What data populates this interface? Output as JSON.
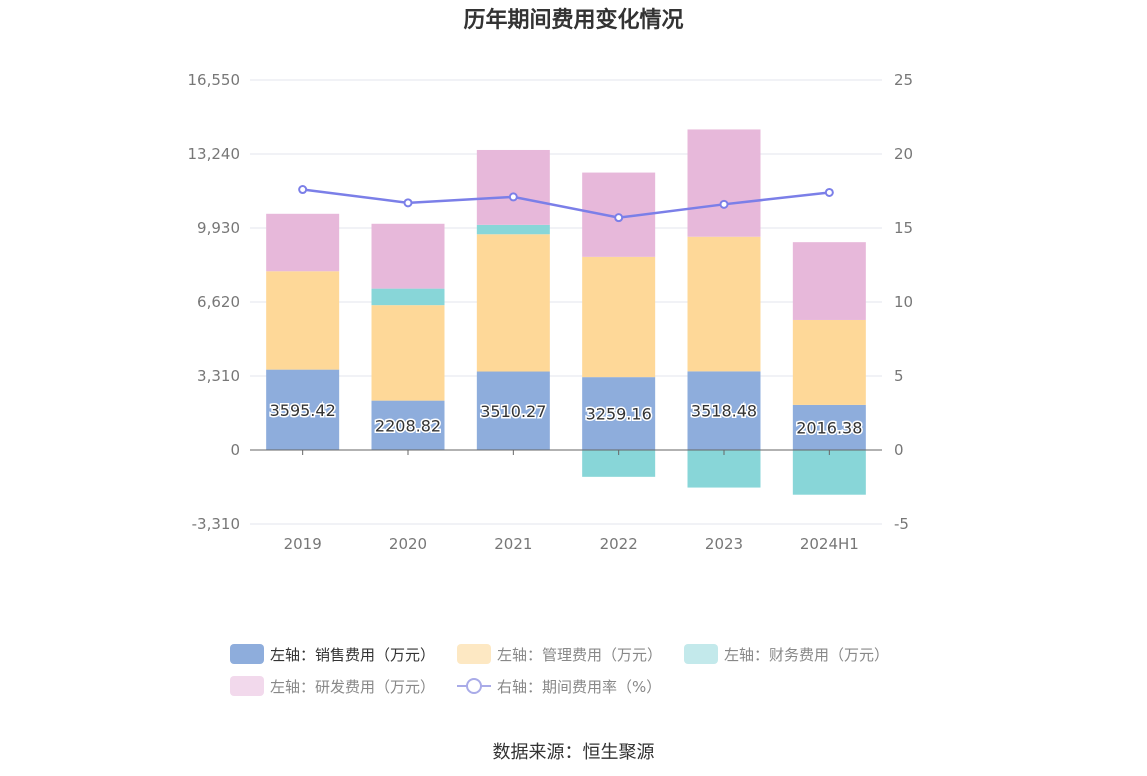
{
  "title": "历年期间费用变化情况",
  "source": "数据来源：恒生聚源",
  "colors": {
    "sales": "#8eaddc",
    "admin": "#fed898",
    "finance": "#88d6d8",
    "rd": "#e7b8da",
    "rate": "#7b7fe8"
  },
  "legend": [
    {
      "label": "左轴：销售费用（万元）",
      "color": "#8eaddc"
    },
    {
      "label": "左轴：管理费用（万元）",
      "color": "#fde8c3"
    },
    {
      "label": "左轴：财务费用（万元）",
      "color": "#c3e9eb"
    },
    {
      "label": "左轴：研发费用（万元）",
      "color": "#f2d9ec"
    },
    {
      "label": "右轴：期间费用率（%）",
      "color": "#a9abe8"
    }
  ],
  "chart_data": {
    "type": "bar",
    "stacked": true,
    "categories": [
      "2019",
      "2020",
      "2021",
      "2022",
      "2023",
      "2024H1"
    ],
    "y_left": {
      "ticks": [
        -3310,
        0,
        3310,
        6620,
        9930,
        13240,
        16550
      ],
      "tick_labels": [
        "-3,310",
        "0",
        "3,310",
        "6,620",
        "9,930",
        "13,240",
        "16,550"
      ],
      "ylim": [
        -3310,
        16550
      ]
    },
    "y_right": {
      "ticks": [
        -5,
        0,
        5,
        10,
        15,
        20,
        25
      ],
      "ylim": [
        -5,
        25
      ]
    },
    "grid": true,
    "series": [
      {
        "name": "左轴：销售费用（万元）",
        "key": "sales",
        "axis": "left",
        "values": [
          3595.42,
          2208.82,
          3510.27,
          3259.16,
          3518.48,
          2016.38
        ],
        "labels": [
          "3595.42",
          "2208.82",
          "3510.27",
          "3259.16",
          "3518.48",
          "2016.38"
        ]
      },
      {
        "name": "左轴：管理费用（万元）",
        "key": "admin",
        "axis": "left",
        "values": [
          4400,
          4270,
          6140,
          5380,
          6020,
          3800
        ]
      },
      {
        "name": "左轴：财务费用（万元）",
        "key": "finance",
        "axis": "left",
        "values": [
          0,
          740,
          420,
          -1200,
          -1680,
          -2000
        ]
      },
      {
        "name": "左轴：研发费用（万元）",
        "key": "rd",
        "axis": "left",
        "values": [
          2570,
          2900,
          3350,
          3770,
          4800,
          3480
        ]
      },
      {
        "name": "右轴：期间费用率（%）",
        "key": "rate",
        "axis": "right",
        "type": "line",
        "values": [
          17.6,
          16.7,
          17.1,
          15.7,
          16.6,
          17.4
        ]
      }
    ]
  }
}
